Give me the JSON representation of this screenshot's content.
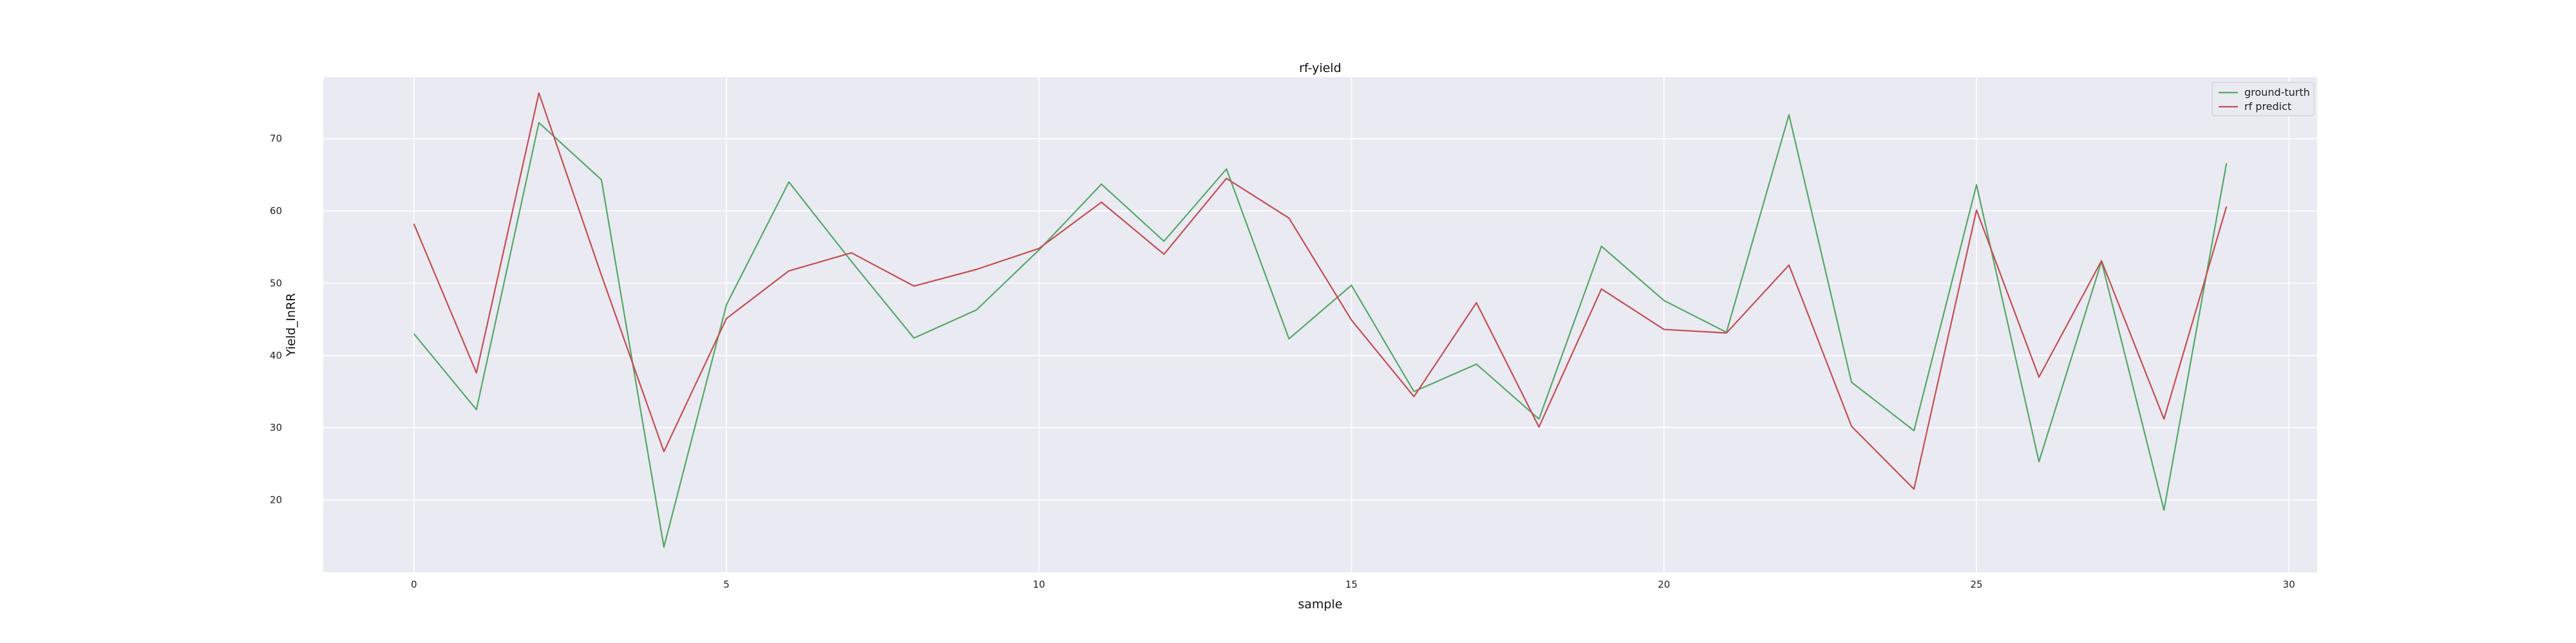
{
  "chart_data": {
    "type": "line",
    "title": "rf-yield",
    "xlabel": "sample",
    "ylabel": "Yield_InRR",
    "xlim": [
      -1.45,
      30.45
    ],
    "ylim": [
      10.0,
      78.5
    ],
    "xticks": [
      0,
      5,
      10,
      15,
      20,
      25,
      30
    ],
    "yticks": [
      20,
      30,
      40,
      50,
      60,
      70
    ],
    "grid": true,
    "legend_position": "top-right",
    "x": [
      0,
      1,
      2,
      3,
      4,
      5,
      6,
      7,
      8,
      9,
      10,
      11,
      12,
      13,
      14,
      15,
      16,
      17,
      18,
      19,
      20,
      21,
      22,
      23,
      24,
      25,
      26,
      27,
      28,
      29
    ],
    "series": [
      {
        "name": "ground-turth",
        "color": "#55a868",
        "values": [
          43.0,
          32.5,
          72.2,
          64.3,
          13.5,
          47.0,
          64.0,
          53.0,
          42.4,
          46.3,
          54.6,
          63.7,
          55.8,
          65.8,
          42.3,
          49.7,
          35.0,
          38.8,
          31.2,
          55.1,
          47.6,
          43.2,
          73.3,
          36.3,
          29.6,
          63.6,
          25.3,
          53.0,
          18.6,
          66.6
        ]
      },
      {
        "name": "rf predict",
        "color": "#c44e52",
        "values": [
          58.2,
          37.6,
          76.3,
          51.1,
          26.7,
          45.1,
          51.7,
          54.2,
          49.6,
          51.9,
          54.8,
          61.2,
          54.0,
          64.5,
          59.0,
          44.9,
          34.3,
          47.3,
          30.1,
          49.2,
          43.6,
          43.1,
          52.5,
          30.2,
          21.5,
          60.1,
          37.0,
          53.1,
          31.2,
          60.6
        ]
      }
    ]
  },
  "colors": {
    "plot_background": "#eaeaf2",
    "grid": "#ffffff"
  }
}
